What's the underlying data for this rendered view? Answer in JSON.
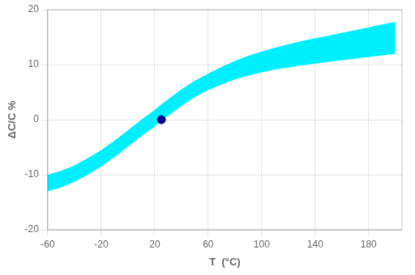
{
  "chart_data": {
    "type": "area",
    "xlabel": "T  (°C)",
    "ylabel": "ΔC/C %",
    "xlim": [
      -60,
      205
    ],
    "ylim": [
      -20,
      20
    ],
    "xticks": [
      -60,
      -20,
      20,
      60,
      100,
      140,
      180
    ],
    "yticks": [
      -20,
      -10,
      0,
      10,
      20
    ],
    "grid": true,
    "series": [
      {
        "type": "band",
        "color": "#00EFFF",
        "x": [
          -60,
          -50,
          -40,
          -30,
          -20,
          -10,
          0,
          10,
          20,
          25,
          30,
          40,
          50,
          60,
          70,
          80,
          90,
          100,
          110,
          120,
          130,
          140,
          150,
          160,
          170,
          180,
          190,
          200
        ],
        "lower": [
          -13,
          -12.3,
          -11.3,
          -10,
          -8.5,
          -6.8,
          -4.9,
          -3,
          -1.2,
          -0.2,
          0.7,
          2.5,
          4.1,
          5.4,
          6.4,
          7.3,
          8,
          8.6,
          9.1,
          9.5,
          9.9,
          10.2,
          10.5,
          10.8,
          11.1,
          11.4,
          11.7,
          12
        ],
        "upper": [
          -10,
          -9.3,
          -8.3,
          -7,
          -5.5,
          -3.8,
          -1.9,
          0,
          1.8,
          2.8,
          3.7,
          5.5,
          7.1,
          8.4,
          9.6,
          10.7,
          11.6,
          12.4,
          13.1,
          13.7,
          14.3,
          14.8,
          15.3,
          15.8,
          16.3,
          16.8,
          17.3,
          17.8
        ]
      },
      {
        "type": "scatter",
        "color": "#00008B",
        "marker": "circle",
        "x": [
          25
        ],
        "values": [
          0
        ]
      }
    ]
  }
}
